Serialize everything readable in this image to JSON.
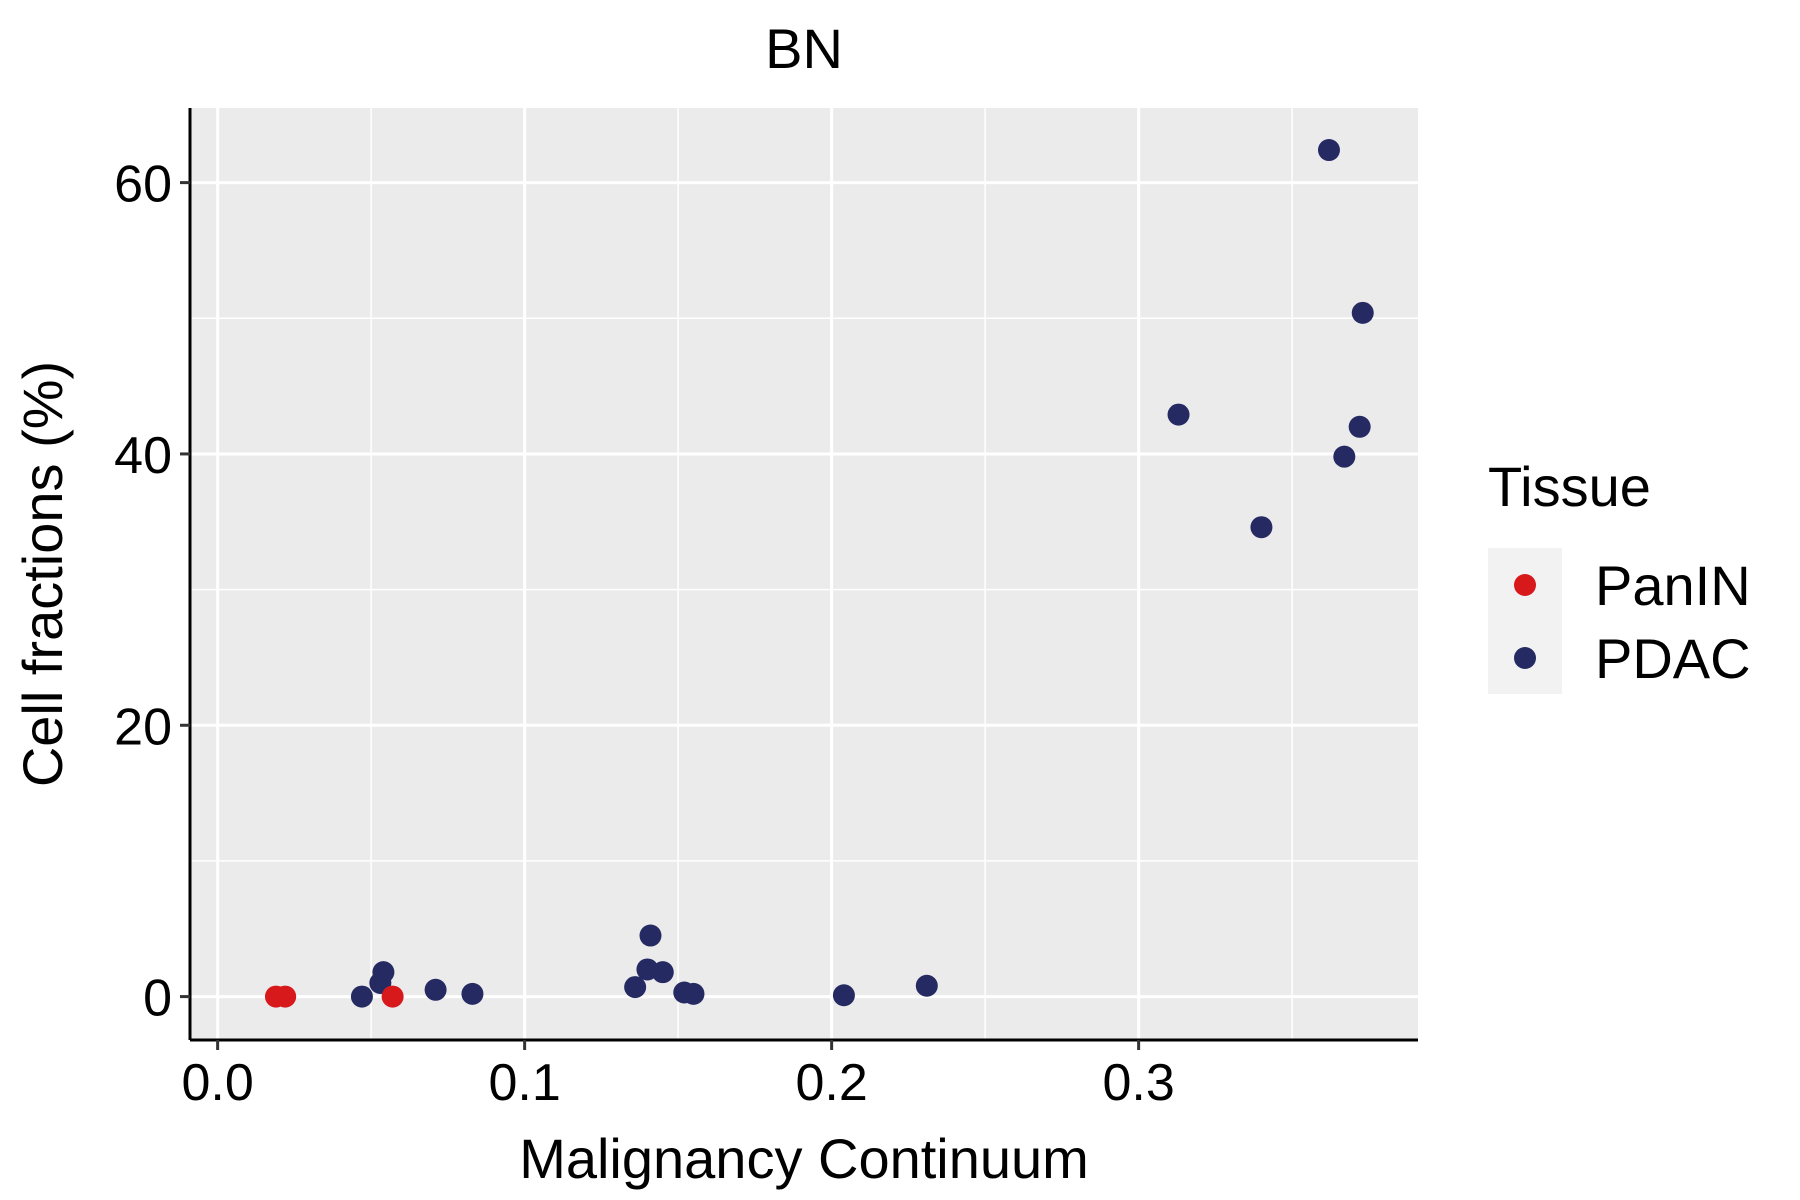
{
  "chart_data": {
    "type": "scatter",
    "title": "BN",
    "xlabel": "Malignancy Continuum",
    "ylabel": "Cell fractions (%)",
    "xlim": [
      -0.009,
      0.391
    ],
    "ylim": [
      -3.2,
      65.5
    ],
    "x_ticks": [
      0.0,
      0.1,
      0.2,
      0.3
    ],
    "x_tick_labels": [
      "0.0",
      "0.1",
      "0.2",
      "0.3"
    ],
    "x_minor_ticks": [
      0.05,
      0.15,
      0.25,
      0.35
    ],
    "y_ticks": [
      0,
      20,
      40,
      60
    ],
    "y_tick_labels": [
      "0",
      "20",
      "40",
      "60"
    ],
    "y_minor_ticks": [
      10,
      30,
      50
    ],
    "grid": true,
    "panel_background": "#EBEBEB",
    "legend": {
      "title": "Tissue",
      "position": "right",
      "entries": [
        "PanIN",
        "PDAC"
      ]
    },
    "series": [
      {
        "name": "PanIN",
        "color": "#D7191C",
        "points": [
          {
            "x": 0.019,
            "y": 0.0
          },
          {
            "x": 0.022,
            "y": 0.0
          },
          {
            "x": 0.057,
            "y": 0.0
          }
        ]
      },
      {
        "name": "PDAC",
        "color": "#252A62",
        "points": [
          {
            "x": 0.047,
            "y": 0.0
          },
          {
            "x": 0.053,
            "y": 1.0
          },
          {
            "x": 0.054,
            "y": 1.8
          },
          {
            "x": 0.071,
            "y": 0.5
          },
          {
            "x": 0.083,
            "y": 0.2
          },
          {
            "x": 0.136,
            "y": 0.7
          },
          {
            "x": 0.14,
            "y": 2.0
          },
          {
            "x": 0.141,
            "y": 4.5
          },
          {
            "x": 0.145,
            "y": 1.8
          },
          {
            "x": 0.152,
            "y": 0.3
          },
          {
            "x": 0.155,
            "y": 0.2
          },
          {
            "x": 0.204,
            "y": 0.1
          },
          {
            "x": 0.231,
            "y": 0.8
          },
          {
            "x": 0.313,
            "y": 42.9
          },
          {
            "x": 0.34,
            "y": 34.6
          },
          {
            "x": 0.362,
            "y": 62.4
          },
          {
            "x": 0.367,
            "y": 39.8
          },
          {
            "x": 0.372,
            "y": 42.0
          },
          {
            "x": 0.373,
            "y": 50.4
          }
        ]
      }
    ]
  }
}
